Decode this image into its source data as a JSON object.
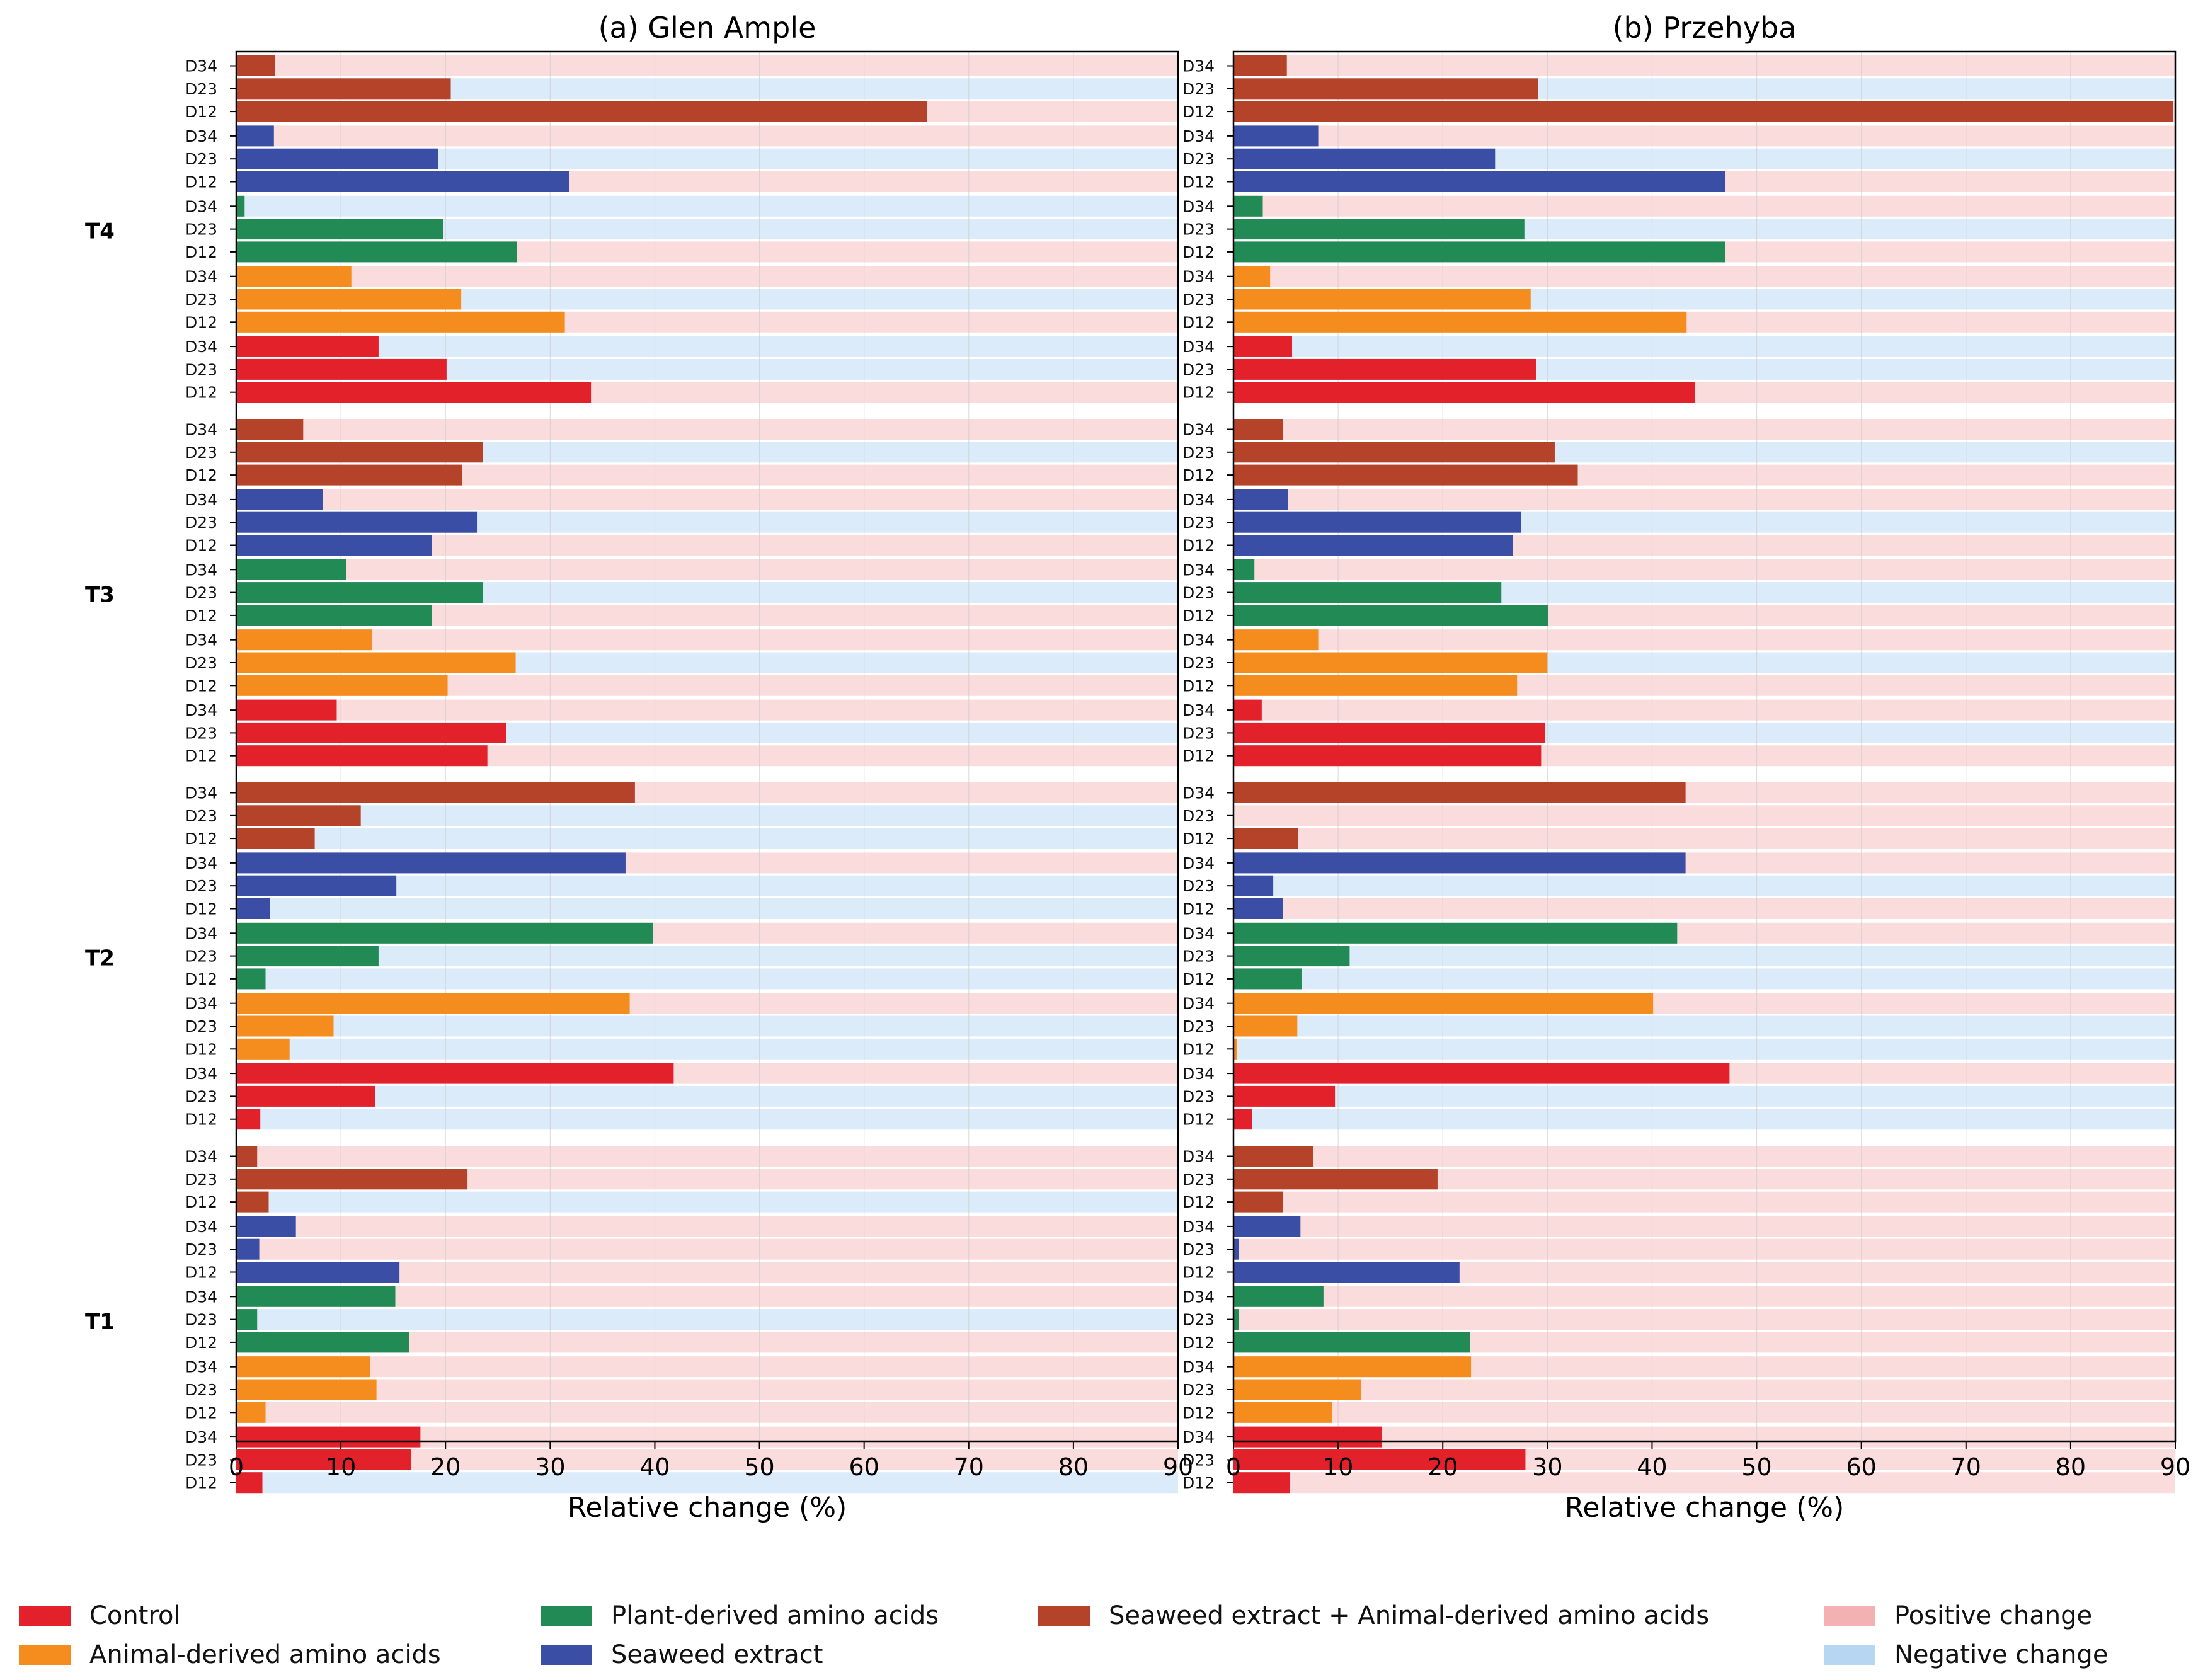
{
  "chart_data": [
    {
      "type": "bar",
      "orientation": "horizontal",
      "title": "(a) Glen Ample",
      "xlabel": "Relative change (%)",
      "xlim": [
        0,
        90
      ],
      "xticks": [
        0,
        10,
        20,
        30,
        40,
        50,
        60,
        70,
        80,
        90
      ],
      "grid": "vertical",
      "groups": [
        {
          "label": "T4",
          "series": [
            {
              "name": "Seaweed extract + Animal-derived amino acids",
              "values": {
                "D34": 3.7,
                "D23": 20.5,
                "D12": 66.0
              },
              "sign": {
                "D34": "positive",
                "D23": "negative",
                "D12": "positive"
              }
            },
            {
              "name": "Seaweed extract",
              "values": {
                "D34": 3.6,
                "D23": 19.3,
                "D12": 31.8
              },
              "sign": {
                "D34": "positive",
                "D23": "negative",
                "D12": "positive"
              }
            },
            {
              "name": "Plant-derived amino acids",
              "values": {
                "D34": 0.8,
                "D23": 19.8,
                "D12": 26.8
              },
              "sign": {
                "D34": "negative",
                "D23": "negative",
                "D12": "positive"
              }
            },
            {
              "name": "Animal-derived amino acids",
              "values": {
                "D34": 11.0,
                "D23": 21.5,
                "D12": 31.4
              },
              "sign": {
                "D34": "positive",
                "D23": "negative",
                "D12": "positive"
              }
            },
            {
              "name": "Control",
              "values": {
                "D34": 13.6,
                "D23": 20.1,
                "D12": 33.9
              },
              "sign": {
                "D34": "negative",
                "D23": "negative",
                "D12": "positive"
              }
            }
          ]
        },
        {
          "label": "T3",
          "series": [
            {
              "name": "Seaweed extract + Animal-derived amino acids",
              "values": {
                "D34": 6.4,
                "D23": 23.6,
                "D12": 21.6
              },
              "sign": {
                "D34": "positive",
                "D23": "negative",
                "D12": "positive"
              }
            },
            {
              "name": "Seaweed extract",
              "values": {
                "D34": 8.3,
                "D23": 23.0,
                "D12": 18.7
              },
              "sign": {
                "D34": "positive",
                "D23": "negative",
                "D12": "positive"
              }
            },
            {
              "name": "Plant-derived amino acids",
              "values": {
                "D34": 10.5,
                "D23": 23.6,
                "D12": 18.7
              },
              "sign": {
                "D34": "positive",
                "D23": "negative",
                "D12": "positive"
              }
            },
            {
              "name": "Animal-derived amino acids",
              "values": {
                "D34": 13.0,
                "D23": 26.7,
                "D12": 20.2
              },
              "sign": {
                "D34": "positive",
                "D23": "negative",
                "D12": "positive"
              }
            },
            {
              "name": "Control",
              "values": {
                "D34": 9.6,
                "D23": 25.8,
                "D12": 24.0
              },
              "sign": {
                "D34": "positive",
                "D23": "negative",
                "D12": "positive"
              }
            }
          ]
        },
        {
          "label": "T2",
          "series": [
            {
              "name": "Seaweed extract + Animal-derived amino acids",
              "values": {
                "D34": 38.1,
                "D23": 11.9,
                "D12": 7.5
              },
              "sign": {
                "D34": "positive",
                "D23": "negative",
                "D12": "negative"
              }
            },
            {
              "name": "Seaweed extract",
              "values": {
                "D34": 37.2,
                "D23": 15.3,
                "D12": 3.2
              },
              "sign": {
                "D34": "positive",
                "D23": "negative",
                "D12": "negative"
              }
            },
            {
              "name": "Plant-derived amino acids",
              "values": {
                "D34": 39.8,
                "D23": 13.6,
                "D12": 2.8
              },
              "sign": {
                "D34": "positive",
                "D23": "negative",
                "D12": "negative"
              }
            },
            {
              "name": "Animal-derived amino acids",
              "values": {
                "D34": 37.6,
                "D23": 9.3,
                "D12": 5.1
              },
              "sign": {
                "D34": "positive",
                "D23": "negative",
                "D12": "negative"
              }
            },
            {
              "name": "Control",
              "values": {
                "D34": 41.8,
                "D23": 13.3,
                "D12": 2.3
              },
              "sign": {
                "D34": "positive",
                "D23": "negative",
                "D12": "negative"
              }
            }
          ]
        },
        {
          "label": "T1",
          "series": [
            {
              "name": "Seaweed extract + Animal-derived amino acids",
              "values": {
                "D34": 2.0,
                "D23": 22.1,
                "D12": 3.1
              },
              "sign": {
                "D34": "positive",
                "D23": "positive",
                "D12": "negative"
              }
            },
            {
              "name": "Seaweed extract",
              "values": {
                "D34": 5.7,
                "D23": 2.2,
                "D12": 15.6
              },
              "sign": {
                "D34": "positive",
                "D23": "positive",
                "D12": "positive"
              }
            },
            {
              "name": "Plant-derived amino acids",
              "values": {
                "D34": 15.2,
                "D23": 2.0,
                "D12": 16.5
              },
              "sign": {
                "D34": "positive",
                "D23": "negative",
                "D12": "positive"
              }
            },
            {
              "name": "Animal-derived amino acids",
              "values": {
                "D34": 12.8,
                "D23": 13.4,
                "D12": 2.8
              },
              "sign": {
                "D34": "positive",
                "D23": "positive",
                "D12": "positive"
              }
            },
            {
              "name": "Control",
              "values": {
                "D34": 17.6,
                "D23": 16.7,
                "D12": 2.5
              },
              "sign": {
                "D34": "positive",
                "D23": "positive",
                "D12": "negative"
              }
            }
          ]
        }
      ]
    },
    {
      "type": "bar",
      "orientation": "horizontal",
      "title": "(b) Przehyba",
      "xlabel": "Relative change (%)",
      "xlim": [
        0,
        90
      ],
      "xticks": [
        0,
        10,
        20,
        30,
        40,
        50,
        60,
        70,
        80,
        90
      ],
      "grid": "vertical",
      "groups": [
        {
          "label": "T4",
          "series": [
            {
              "name": "Seaweed extract + Animal-derived amino acids",
              "values": {
                "D34": 5.1,
                "D23": 29.1,
                "D12": 89.8
              },
              "sign": {
                "D34": "positive",
                "D23": "negative",
                "D12": "positive"
              }
            },
            {
              "name": "Seaweed extract",
              "values": {
                "D34": 8.1,
                "D23": 25.0,
                "D12": 47.0
              },
              "sign": {
                "D34": "positive",
                "D23": "negative",
                "D12": "positive"
              }
            },
            {
              "name": "Plant-derived amino acids",
              "values": {
                "D34": 2.8,
                "D23": 27.8,
                "D12": 47.0
              },
              "sign": {
                "D34": "positive",
                "D23": "negative",
                "D12": "positive"
              }
            },
            {
              "name": "Animal-derived amino acids",
              "values": {
                "D34": 3.5,
                "D23": 28.4,
                "D12": 43.3
              },
              "sign": {
                "D34": "positive",
                "D23": "negative",
                "D12": "positive"
              }
            },
            {
              "name": "Control",
              "values": {
                "D34": 5.6,
                "D23": 28.9,
                "D12": 44.1
              },
              "sign": {
                "D34": "negative",
                "D23": "negative",
                "D12": "positive"
              }
            }
          ]
        },
        {
          "label": "T3",
          "series": [
            {
              "name": "Seaweed extract + Animal-derived amino acids",
              "values": {
                "D34": 4.7,
                "D23": 30.7,
                "D12": 32.9
              },
              "sign": {
                "D34": "positive",
                "D23": "negative",
                "D12": "positive"
              }
            },
            {
              "name": "Seaweed extract",
              "values": {
                "D34": 5.2,
                "D23": 27.5,
                "D12": 26.7
              },
              "sign": {
                "D34": "positive",
                "D23": "negative",
                "D12": "positive"
              }
            },
            {
              "name": "Plant-derived amino acids",
              "values": {
                "D34": 2.0,
                "D23": 25.6,
                "D12": 30.1
              },
              "sign": {
                "D34": "positive",
                "D23": "negative",
                "D12": "positive"
              }
            },
            {
              "name": "Animal-derived amino acids",
              "values": {
                "D34": 8.1,
                "D23": 30.0,
                "D12": 27.1
              },
              "sign": {
                "D34": "positive",
                "D23": "negative",
                "D12": "positive"
              }
            },
            {
              "name": "Control",
              "values": {
                "D34": 2.7,
                "D23": 29.8,
                "D12": 29.4
              },
              "sign": {
                "D34": "positive",
                "D23": "negative",
                "D12": "positive"
              }
            }
          ]
        },
        {
          "label": "T2",
          "series": [
            {
              "name": "Seaweed extract + Animal-derived amino acids",
              "values": {
                "D34": 43.2,
                "D23": 0.0,
                "D12": 6.2
              },
              "sign": {
                "D34": "positive",
                "D23": "positive",
                "D12": "positive"
              }
            },
            {
              "name": "Seaweed extract",
              "values": {
                "D34": 43.2,
                "D23": 3.8,
                "D12": 4.7
              },
              "sign": {
                "D34": "positive",
                "D23": "negative",
                "D12": "positive"
              }
            },
            {
              "name": "Plant-derived amino acids",
              "values": {
                "D34": 42.4,
                "D23": 11.1,
                "D12": 6.5
              },
              "sign": {
                "D34": "positive",
                "D23": "negative",
                "D12": "negative"
              }
            },
            {
              "name": "Animal-derived amino acids",
              "values": {
                "D34": 40.1,
                "D23": 6.1,
                "D12": 0.3
              },
              "sign": {
                "D34": "positive",
                "D23": "negative",
                "D12": "negative"
              }
            },
            {
              "name": "Control",
              "values": {
                "D34": 47.4,
                "D23": 9.7,
                "D12": 1.8
              },
              "sign": {
                "D34": "positive",
                "D23": "negative",
                "D12": "negative"
              }
            }
          ]
        },
        {
          "label": "T1",
          "series": [
            {
              "name": "Seaweed extract + Animal-derived amino acids",
              "values": {
                "D34": 7.6,
                "D23": 19.5,
                "D12": 4.7
              },
              "sign": {
                "D34": "positive",
                "D23": "positive",
                "D12": "positive"
              }
            },
            {
              "name": "Seaweed extract",
              "values": {
                "D34": 6.4,
                "D23": 0.5,
                "D12": 21.6
              },
              "sign": {
                "D34": "positive",
                "D23": "positive",
                "D12": "positive"
              }
            },
            {
              "name": "Plant-derived amino acids",
              "values": {
                "D34": 8.6,
                "D23": 0.5,
                "D12": 22.6
              },
              "sign": {
                "D34": "positive",
                "D23": "positive",
                "D12": "positive"
              }
            },
            {
              "name": "Animal-derived amino acids",
              "values": {
                "D34": 22.7,
                "D23": 12.2,
                "D12": 9.4
              },
              "sign": {
                "D34": "positive",
                "D23": "positive",
                "D12": "positive"
              }
            },
            {
              "name": "Control",
              "values": {
                "D34": 14.2,
                "D23": 27.9,
                "D12": 5.4
              },
              "sign": {
                "D34": "positive",
                "D23": "positive",
                "D12": "positive"
              }
            }
          ]
        }
      ]
    }
  ],
  "legend": {
    "placement": "bottom",
    "items": [
      {
        "label": "Control",
        "color": "#e3212b"
      },
      {
        "label": "Animal-derived amino acids",
        "color": "#f58c1e"
      },
      {
        "label": "Plant-derived amino acids",
        "color": "#228b55"
      },
      {
        "label": "Seaweed extract",
        "color": "#3a4ea6"
      },
      {
        "label": "Seaweed extract + Animal-derived amino acids",
        "color": "#b5432a"
      },
      {
        "label": "Positive change",
        "color": "#f4b1b4"
      },
      {
        "label": "Negative change",
        "color": "#b7d6f2"
      }
    ]
  },
  "colors": {
    "Control": "#e3212b",
    "Animal-derived amino acids": "#f58c1e",
    "Plant-derived amino acids": "#228b55",
    "Seaweed extract": "#3a4ea6",
    "Seaweed extract + Animal-derived amino acids": "#b5432a",
    "positive_bg": "#fbdcdd",
    "negative_bg": "#dcebfa"
  }
}
